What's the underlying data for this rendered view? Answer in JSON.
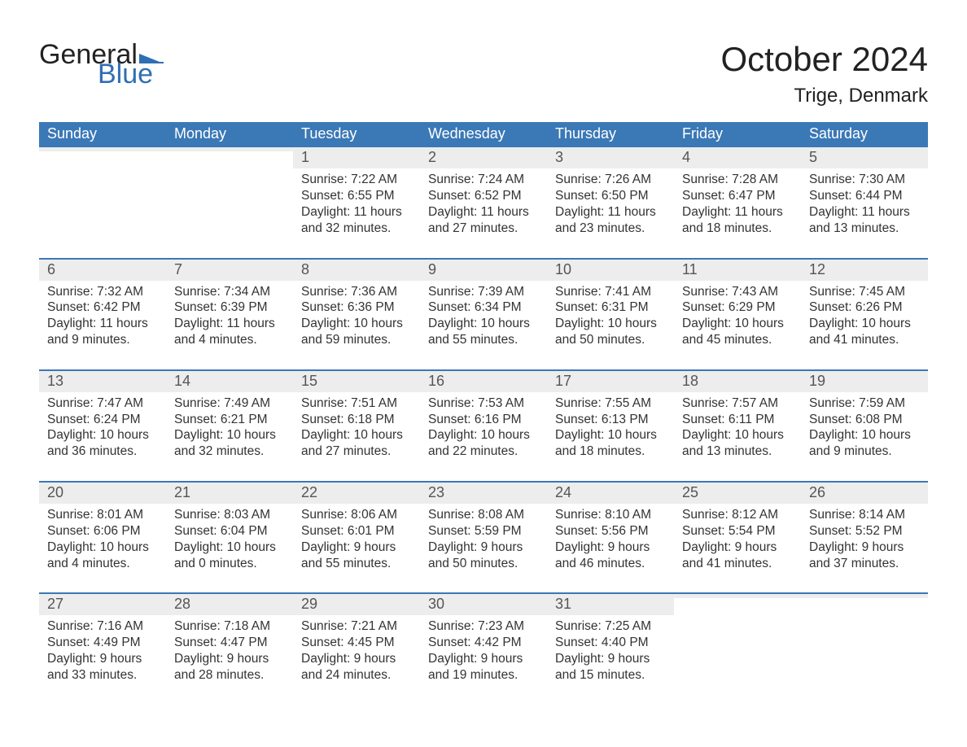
{
  "logo": {
    "word1": "General",
    "word2": "Blue",
    "flag_color": "#2f6fb3",
    "text_dark": "#222222"
  },
  "title": "October 2024",
  "location": "Trige, Denmark",
  "colors": {
    "header_bg": "#3b78b6",
    "header_text": "#ffffff",
    "daynum_bg": "#ededed",
    "week_divider": "#3b78b6",
    "body_text": "#333333"
  },
  "weekdays": [
    "Sunday",
    "Monday",
    "Tuesday",
    "Wednesday",
    "Thursday",
    "Friday",
    "Saturday"
  ],
  "weeks": [
    [
      {
        "blank": true
      },
      {
        "blank": true
      },
      {
        "day": 1,
        "sunrise": "7:22 AM",
        "sunset": "6:55 PM",
        "daylight": "11 hours and 32 minutes."
      },
      {
        "day": 2,
        "sunrise": "7:24 AM",
        "sunset": "6:52 PM",
        "daylight": "11 hours and 27 minutes."
      },
      {
        "day": 3,
        "sunrise": "7:26 AM",
        "sunset": "6:50 PM",
        "daylight": "11 hours and 23 minutes."
      },
      {
        "day": 4,
        "sunrise": "7:28 AM",
        "sunset": "6:47 PM",
        "daylight": "11 hours and 18 minutes."
      },
      {
        "day": 5,
        "sunrise": "7:30 AM",
        "sunset": "6:44 PM",
        "daylight": "11 hours and 13 minutes."
      }
    ],
    [
      {
        "day": 6,
        "sunrise": "7:32 AM",
        "sunset": "6:42 PM",
        "daylight": "11 hours and 9 minutes."
      },
      {
        "day": 7,
        "sunrise": "7:34 AM",
        "sunset": "6:39 PM",
        "daylight": "11 hours and 4 minutes."
      },
      {
        "day": 8,
        "sunrise": "7:36 AM",
        "sunset": "6:36 PM",
        "daylight": "10 hours and 59 minutes."
      },
      {
        "day": 9,
        "sunrise": "7:39 AM",
        "sunset": "6:34 PM",
        "daylight": "10 hours and 55 minutes."
      },
      {
        "day": 10,
        "sunrise": "7:41 AM",
        "sunset": "6:31 PM",
        "daylight": "10 hours and 50 minutes."
      },
      {
        "day": 11,
        "sunrise": "7:43 AM",
        "sunset": "6:29 PM",
        "daylight": "10 hours and 45 minutes."
      },
      {
        "day": 12,
        "sunrise": "7:45 AM",
        "sunset": "6:26 PM",
        "daylight": "10 hours and 41 minutes."
      }
    ],
    [
      {
        "day": 13,
        "sunrise": "7:47 AM",
        "sunset": "6:24 PM",
        "daylight": "10 hours and 36 minutes."
      },
      {
        "day": 14,
        "sunrise": "7:49 AM",
        "sunset": "6:21 PM",
        "daylight": "10 hours and 32 minutes."
      },
      {
        "day": 15,
        "sunrise": "7:51 AM",
        "sunset": "6:18 PM",
        "daylight": "10 hours and 27 minutes."
      },
      {
        "day": 16,
        "sunrise": "7:53 AM",
        "sunset": "6:16 PM",
        "daylight": "10 hours and 22 minutes."
      },
      {
        "day": 17,
        "sunrise": "7:55 AM",
        "sunset": "6:13 PM",
        "daylight": "10 hours and 18 minutes."
      },
      {
        "day": 18,
        "sunrise": "7:57 AM",
        "sunset": "6:11 PM",
        "daylight": "10 hours and 13 minutes."
      },
      {
        "day": 19,
        "sunrise": "7:59 AM",
        "sunset": "6:08 PM",
        "daylight": "10 hours and 9 minutes."
      }
    ],
    [
      {
        "day": 20,
        "sunrise": "8:01 AM",
        "sunset": "6:06 PM",
        "daylight": "10 hours and 4 minutes."
      },
      {
        "day": 21,
        "sunrise": "8:03 AM",
        "sunset": "6:04 PM",
        "daylight": "10 hours and 0 minutes."
      },
      {
        "day": 22,
        "sunrise": "8:06 AM",
        "sunset": "6:01 PM",
        "daylight": "9 hours and 55 minutes."
      },
      {
        "day": 23,
        "sunrise": "8:08 AM",
        "sunset": "5:59 PM",
        "daylight": "9 hours and 50 minutes."
      },
      {
        "day": 24,
        "sunrise": "8:10 AM",
        "sunset": "5:56 PM",
        "daylight": "9 hours and 46 minutes."
      },
      {
        "day": 25,
        "sunrise": "8:12 AM",
        "sunset": "5:54 PM",
        "daylight": "9 hours and 41 minutes."
      },
      {
        "day": 26,
        "sunrise": "8:14 AM",
        "sunset": "5:52 PM",
        "daylight": "9 hours and 37 minutes."
      }
    ],
    [
      {
        "day": 27,
        "sunrise": "7:16 AM",
        "sunset": "4:49 PM",
        "daylight": "9 hours and 33 minutes."
      },
      {
        "day": 28,
        "sunrise": "7:18 AM",
        "sunset": "4:47 PM",
        "daylight": "9 hours and 28 minutes."
      },
      {
        "day": 29,
        "sunrise": "7:21 AM",
        "sunset": "4:45 PM",
        "daylight": "9 hours and 24 minutes."
      },
      {
        "day": 30,
        "sunrise": "7:23 AM",
        "sunset": "4:42 PM",
        "daylight": "9 hours and 19 minutes."
      },
      {
        "day": 31,
        "sunrise": "7:25 AM",
        "sunset": "4:40 PM",
        "daylight": "9 hours and 15 minutes."
      },
      {
        "blank": true
      },
      {
        "blank": true
      }
    ]
  ],
  "labels": {
    "sunrise": "Sunrise:",
    "sunset": "Sunset:",
    "daylight": "Daylight:"
  }
}
